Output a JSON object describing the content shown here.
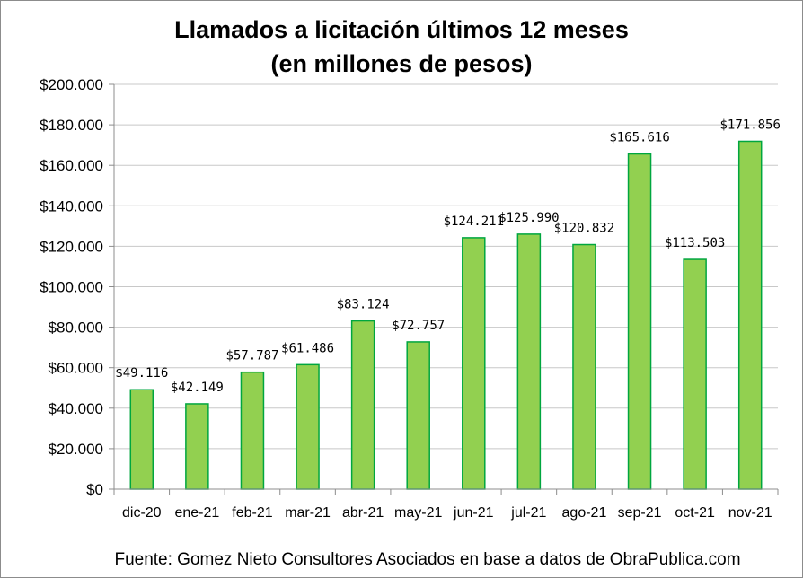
{
  "chart_data": {
    "type": "bar",
    "title": "Llamados a licitación últimos 12 meses",
    "subtitle": "(en millones de pesos)",
    "categories": [
      "dic-20",
      "ene-21",
      "feb-21",
      "mar-21",
      "abr-21",
      "may-21",
      "jun-21",
      "jul-21",
      "ago-21",
      "sep-21",
      "oct-21",
      "nov-21"
    ],
    "values": [
      49116,
      42149,
      57787,
      61486,
      83124,
      72757,
      124211,
      125990,
      120832,
      165616,
      113503,
      171856
    ],
    "data_labels": [
      "$49.116",
      "$42.149",
      "$57.787",
      "$61.486",
      "$83.124",
      "$72.757",
      "$124.211",
      "$125.990",
      "$120.832",
      "$165.616",
      "$113.503",
      "$171.856"
    ],
    "y_ticks": [
      0,
      20000,
      40000,
      60000,
      80000,
      100000,
      120000,
      140000,
      160000,
      180000,
      200000
    ],
    "y_tick_labels": [
      "$0",
      "$20.000",
      "$40.000",
      "$60.000",
      "$80.000",
      "$100.000",
      "$120.000",
      "$140.000",
      "$160.000",
      "$180.000",
      "$200.000"
    ],
    "ylim": [
      0,
      200000
    ],
    "grid": true,
    "legend": "none",
    "bar_fill": "#92d050",
    "bar_stroke": "#00a63f",
    "grid_color": "#c8c8c8"
  },
  "source_note": "Fuente: Gomez Nieto Consultores Asociados en base a datos de ObraPublica.com"
}
